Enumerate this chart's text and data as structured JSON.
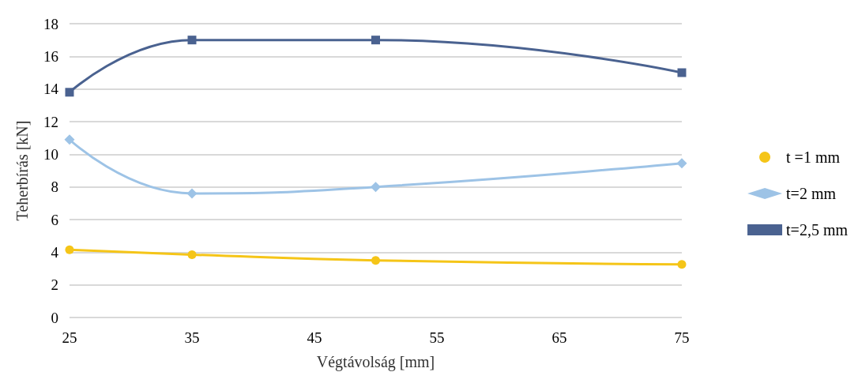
{
  "chart_data": {
    "type": "line",
    "xlabel": "Végtávolság [mm]",
    "ylabel": "Teherbírás [kN]",
    "x": [
      25,
      35,
      50,
      75
    ],
    "xlim": [
      25,
      75
    ],
    "xticks": [
      25,
      35,
      45,
      55,
      65,
      75
    ],
    "ylim": [
      0,
      18
    ],
    "yticks": [
      0,
      2,
      4,
      6,
      8,
      10,
      12,
      14,
      16,
      18
    ],
    "grid": "y",
    "legend": "right",
    "series": [
      {
        "name": "t =1 mm",
        "color": "#f5c518",
        "marker": "circle",
        "values": [
          4.15,
          3.85,
          3.5,
          3.25
        ]
      },
      {
        "name": "t=2 mm",
        "color": "#9dc3e6",
        "marker": "diamond",
        "values": [
          10.9,
          7.6,
          8.0,
          9.45
        ]
      },
      {
        "name": "t=2,5 mm",
        "color": "#4a6290",
        "marker": "square",
        "values": [
          13.8,
          17.0,
          17.0,
          15.0
        ]
      }
    ]
  }
}
